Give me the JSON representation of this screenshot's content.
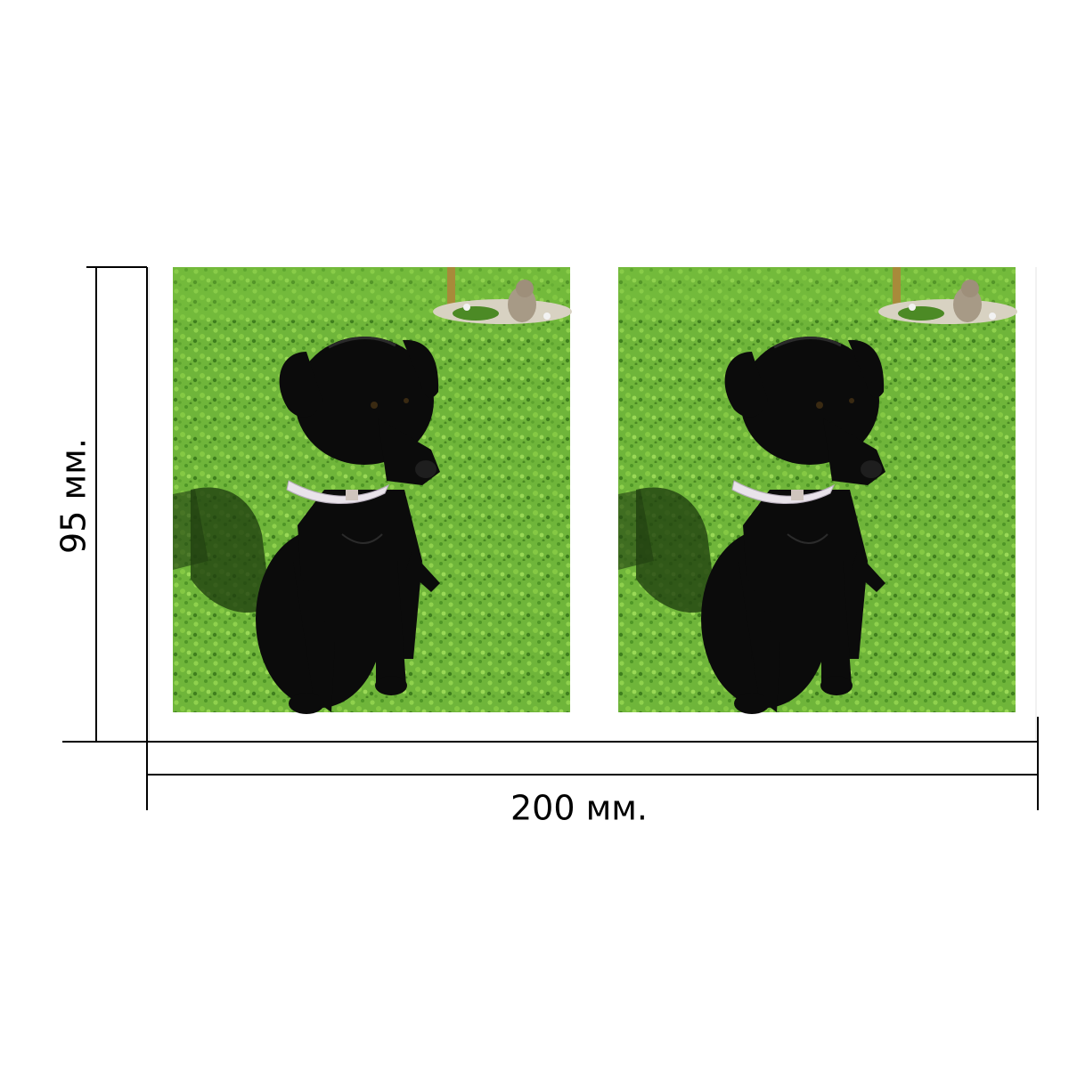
{
  "dimensions": {
    "height_label": "95 мм.",
    "width_label": "200 мм."
  },
  "photos": [
    {
      "subject": "black-puppy-on-grass",
      "colors": {
        "grass": "#6fb53a",
        "grass_light": "#8fd14d",
        "grass_dark": "#3f7f1e",
        "dog": "#0b0b0b",
        "collar": "#e9e3ea"
      }
    },
    {
      "subject": "black-puppy-on-grass",
      "colors": {
        "grass": "#6fb53a",
        "grass_light": "#8fd14d",
        "grass_dark": "#3f7f1e",
        "dog": "#0b0b0b",
        "collar": "#e9e3ea"
      }
    }
  ],
  "colors": {
    "line": "#000000",
    "text": "#000000",
    "sheet_border": "#d9d9d9",
    "background": "#ffffff"
  }
}
